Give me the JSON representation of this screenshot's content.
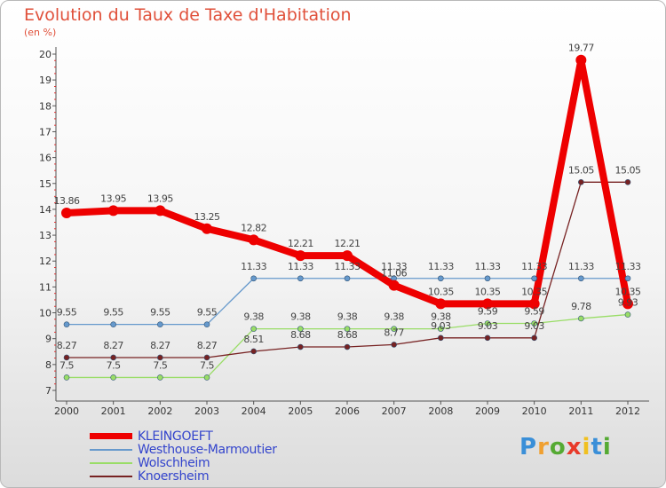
{
  "chart_data": {
    "type": "line",
    "title": "Evolution du Taux de Taxe d'Habitation",
    "unit_label": "(en %)",
    "x": [
      "2000",
      "2001",
      "2002",
      "2003",
      "2004",
      "2005",
      "2006",
      "2007",
      "2008",
      "2009",
      "2010",
      "2011",
      "2012"
    ],
    "ylim": [
      7,
      20
    ],
    "yticks": [
      "7",
      "8",
      "9",
      "10",
      "11",
      "12",
      "13",
      "14",
      "15",
      "16",
      "17",
      "18",
      "19",
      "20"
    ],
    "grid": false,
    "legend_position": "bottom-left",
    "series": [
      {
        "name": "KLEINGOEFT",
        "color": "#ee0000",
        "values": [
          13.86,
          13.95,
          13.95,
          13.25,
          12.82,
          12.21,
          12.21,
          11.06,
          10.35,
          10.35,
          10.35,
          19.77,
          10.35
        ],
        "labels": [
          "13.86",
          "13.95",
          "13.95",
          "13.25",
          "12.82",
          "12.21",
          "12.21",
          "11.06",
          "10.35",
          "10.35",
          "10.35",
          "19.77",
          "10.35"
        ]
      },
      {
        "name": "Westhouse-Marmoutier",
        "color": "#6699cc",
        "values": [
          9.55,
          9.55,
          9.55,
          9.55,
          11.33,
          11.33,
          11.33,
          11.33,
          11.33,
          11.33,
          11.33,
          11.33,
          11.33
        ],
        "labels": [
          "9.55",
          "9.55",
          "9.55",
          "9.55",
          "11.33",
          "11.33",
          "11.33",
          "11.33",
          "11.33",
          "11.33",
          "11.33",
          "11.33",
          "11.33"
        ]
      },
      {
        "name": "Wolschheim",
        "color": "#99dd66",
        "values": [
          7.5,
          7.5,
          7.5,
          7.5,
          9.38,
          9.38,
          9.38,
          9.38,
          9.38,
          9.59,
          9.59,
          9.78,
          9.93
        ],
        "labels": [
          "7.5",
          "7.5",
          "7.5",
          "7.5",
          "9.38",
          "9.38",
          "9.38",
          "9.38",
          "9.38",
          "9.59",
          "9.59",
          "9.78",
          "9.93"
        ]
      },
      {
        "name": "Knoersheim",
        "color": "#772222",
        "values": [
          8.27,
          8.27,
          8.27,
          8.27,
          8.51,
          8.68,
          8.68,
          8.77,
          9.03,
          9.03,
          9.03,
          15.05,
          15.05
        ],
        "labels": [
          "8.27",
          "8.27",
          "8.27",
          "8.27",
          "8.51",
          "8.68",
          "8.68",
          "8.77",
          "9.03",
          "9.03",
          "9.03",
          "15.05",
          "15.05"
        ]
      }
    ]
  },
  "brand": {
    "letters": [
      "P",
      "r",
      "o",
      "x",
      "i",
      "t",
      "i"
    ],
    "colors": [
      "#3a8fd8",
      "#f0a030",
      "#55aa33",
      "#e83a2a",
      "#f0c020",
      "#3a8fd8",
      "#55aa33"
    ]
  }
}
